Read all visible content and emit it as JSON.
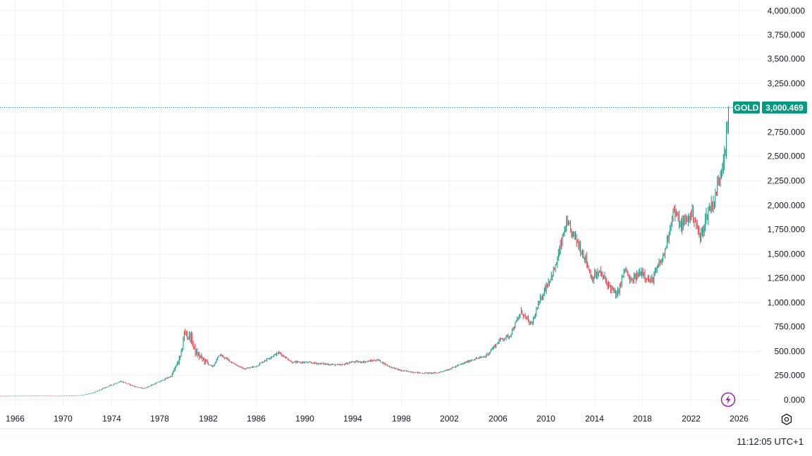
{
  "colors": {
    "up": "#089981",
    "down": "#f23645",
    "grid": "#f0f3fa",
    "axis_text": "#131722",
    "accent": "#089981",
    "bolt": "#9c27b0"
  },
  "last_price": {
    "symbol": "GOLD",
    "value_label": "3,000.469",
    "value": 3000.469
  },
  "time_label": "11:12:05 UTC+1",
  "icons": {
    "settings": "settings-gear-icon",
    "bolt": "lightning-bolt-icon"
  },
  "chart_data": {
    "type": "candlestick",
    "title": "",
    "xlabel": "",
    "ylabel": "",
    "ylim": [
      0,
      4000
    ],
    "xlim": [
      1964.4,
      2027.1
    ],
    "grid": true,
    "y_ticks": [
      {
        "value": 0,
        "label": "0.000"
      },
      {
        "value": 250,
        "label": "250.000"
      },
      {
        "value": 500,
        "label": "500.000"
      },
      {
        "value": 750,
        "label": "750.000"
      },
      {
        "value": 1000,
        "label": "1,000.000"
      },
      {
        "value": 1250,
        "label": "1,250.000"
      },
      {
        "value": 1500,
        "label": "1,500.000"
      },
      {
        "value": 1750,
        "label": "1,750.000"
      },
      {
        "value": 2000,
        "label": "2,000.000"
      },
      {
        "value": 2250,
        "label": "2,250.000"
      },
      {
        "value": 2500,
        "label": "2,500.000"
      },
      {
        "value": 2750,
        "label": "2,750.000"
      },
      {
        "value": 3000,
        "label": "3,000.000"
      },
      {
        "value": 3250,
        "label": "3,250.000"
      },
      {
        "value": 3500,
        "label": "3,500.000"
      },
      {
        "value": 3750,
        "label": "3,750.000"
      },
      {
        "value": 4000,
        "label": "4,000.000"
      }
    ],
    "x_ticks": [
      {
        "value": 1966,
        "label": "1966"
      },
      {
        "value": 1970,
        "label": "1970"
      },
      {
        "value": 1974,
        "label": "1974"
      },
      {
        "value": 1978,
        "label": "1978"
      },
      {
        "value": 1982,
        "label": "1982"
      },
      {
        "value": 1986,
        "label": "1986"
      },
      {
        "value": 1990,
        "label": "1990"
      },
      {
        "value": 1994,
        "label": "1994"
      },
      {
        "value": 1998,
        "label": "1998"
      },
      {
        "value": 2002,
        "label": "2002"
      },
      {
        "value": 2006,
        "label": "2006"
      },
      {
        "value": 2010,
        "label": "2010"
      },
      {
        "value": 2014,
        "label": "2014"
      },
      {
        "value": 2018,
        "label": "2018"
      },
      {
        "value": 2022,
        "label": "2022"
      },
      {
        "value": 2026,
        "label": "2026"
      }
    ],
    "anchors": [
      [
        1964.4,
        35
      ],
      [
        1968.0,
        37
      ],
      [
        1970.0,
        36
      ],
      [
        1971.5,
        42
      ],
      [
        1972.5,
        65
      ],
      [
        1973.5,
        120
      ],
      [
        1974.8,
        185
      ],
      [
        1976.0,
        130
      ],
      [
        1976.7,
        110
      ],
      [
        1978.0,
        180
      ],
      [
        1979.0,
        240
      ],
      [
        1979.8,
        450
      ],
      [
        1980.05,
        680
      ],
      [
        1980.6,
        640
      ],
      [
        1981.0,
        480
      ],
      [
        1981.6,
        410
      ],
      [
        1982.4,
        330
      ],
      [
        1983.0,
        460
      ],
      [
        1984.0,
        380
      ],
      [
        1985.0,
        310
      ],
      [
        1986.0,
        340
      ],
      [
        1987.0,
        420
      ],
      [
        1987.9,
        480
      ],
      [
        1989.0,
        380
      ],
      [
        1990.0,
        380
      ],
      [
        1991.0,
        370
      ],
      [
        1993.0,
        350
      ],
      [
        1994.0,
        385
      ],
      [
        1995.0,
        385
      ],
      [
        1996.1,
        405
      ],
      [
        1997.0,
        340
      ],
      [
        1998.0,
        295
      ],
      [
        1999.7,
        270
      ],
      [
        2001.0,
        270
      ],
      [
        2002.0,
        310
      ],
      [
        2003.0,
        360
      ],
      [
        2004.0,
        410
      ],
      [
        2005.0,
        440
      ],
      [
        2006.3,
        620
      ],
      [
        2007.0,
        650
      ],
      [
        2008.0,
        900
      ],
      [
        2008.8,
        760
      ],
      [
        2009.8,
        1100
      ],
      [
        2010.8,
        1350
      ],
      [
        2011.7,
        1800
      ],
      [
        2012.5,
        1650
      ],
      [
        2013.3,
        1450
      ],
      [
        2013.8,
        1250
      ],
      [
        2014.5,
        1300
      ],
      [
        2015.9,
        1060
      ],
      [
        2016.6,
        1350
      ],
      [
        2017.0,
        1200
      ],
      [
        2018.0,
        1320
      ],
      [
        2018.7,
        1200
      ],
      [
        2019.8,
        1480
      ],
      [
        2020.6,
        1950
      ],
      [
        2021.2,
        1780
      ],
      [
        2022.2,
        1920
      ],
      [
        2022.8,
        1650
      ],
      [
        2023.5,
        1950
      ],
      [
        2024.0,
        2050
      ],
      [
        2024.6,
        2400
      ],
      [
        2025.0,
        2700
      ],
      [
        2025.2,
        3000.469
      ]
    ],
    "last_value": 3000.469
  }
}
